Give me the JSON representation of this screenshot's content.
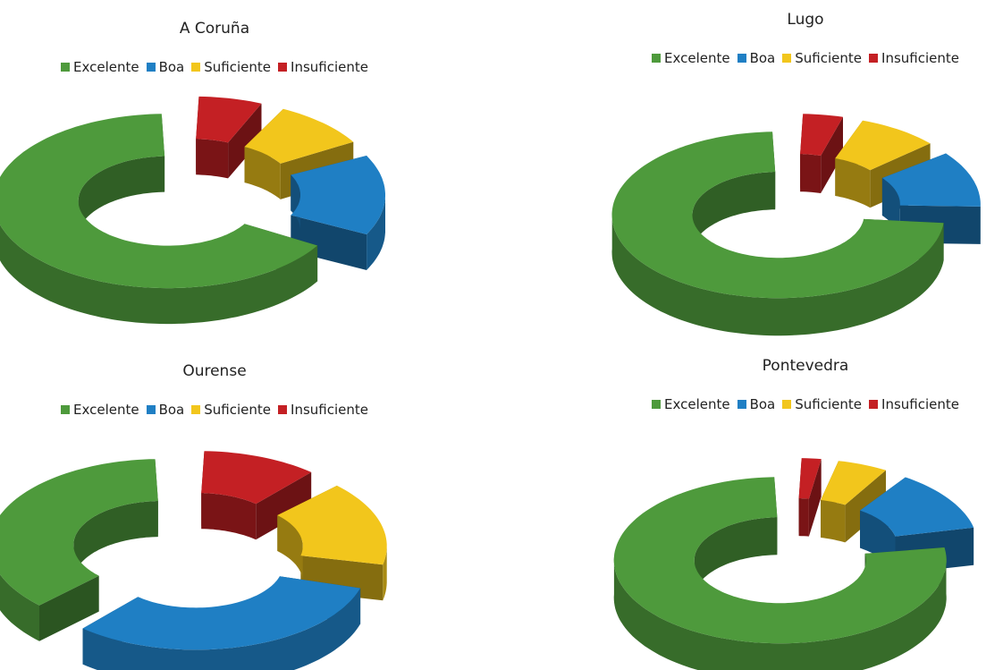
{
  "colors": {
    "Excelente": "#4e9a3c",
    "Boa": "#1f7fc4",
    "Suficiente": "#f2c61c",
    "Insuficiente": "#c42024"
  },
  "chart_data": [
    {
      "type": "pie",
      "title": "A Coruña",
      "legend": [
        "Excelente",
        "Boa",
        "Suficiente",
        "Insuficiente"
      ],
      "legend_position": "top",
      "categories": [
        "Insuficiente",
        "Suficiente",
        "Boa",
        "Excelente"
      ],
      "values": [
        7,
        10,
        16,
        67
      ]
    },
    {
      "type": "pie",
      "title": "Lugo",
      "legend": [
        "Excelente",
        "Boa",
        "Suficiente",
        "Insuficiente"
      ],
      "legend_position": "top",
      "categories": [
        "Insuficiente",
        "Suficiente",
        "Boa",
        "Excelente"
      ],
      "values": [
        5,
        9,
        12,
        74
      ]
    },
    {
      "type": "pie",
      "title": "Ourense",
      "legend": [
        "Excelente",
        "Boa",
        "Suficiente",
        "Insuficiente"
      ],
      "legend_position": "top",
      "categories": [
        "Insuficiente",
        "Suficiente",
        "Boa",
        "Excelente"
      ],
      "values": [
        12,
        17,
        33,
        38
      ]
    },
    {
      "type": "pie",
      "title": "Pontevedra",
      "legend": [
        "Excelente",
        "Boa",
        "Suficiente",
        "Insuficiente"
      ],
      "legend_position": "top",
      "categories": [
        "Insuficiente",
        "Suficiente",
        "Boa",
        "Excelente"
      ],
      "values": [
        3,
        6,
        13,
        78
      ]
    }
  ]
}
